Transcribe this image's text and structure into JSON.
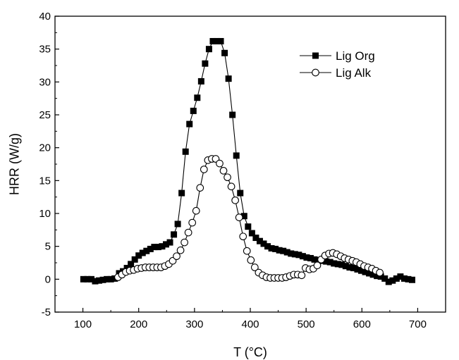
{
  "chart_data": {
    "type": "line",
    "xlabel": "T (°C)",
    "ylabel": "HRR (W/g)",
    "xlim": [
      50,
      750
    ],
    "ylim": [
      -5,
      40
    ],
    "x_ticks": [
      100,
      200,
      300,
      400,
      500,
      600,
      700
    ],
    "y_ticks": [
      -5,
      0,
      5,
      10,
      15,
      20,
      25,
      30,
      35,
      40
    ],
    "legend_position": "top-right",
    "series": [
      {
        "name": "Lig Org",
        "marker": "filled-square",
        "color": "#000000",
        "points": [
          [
            101,
            0.0
          ],
          [
            108,
            0.0
          ],
          [
            115,
            0.0
          ],
          [
            122,
            -0.3
          ],
          [
            129,
            -0.2
          ],
          [
            136,
            -0.1
          ],
          [
            143,
            0.0
          ],
          [
            150,
            0.0
          ],
          [
            157,
            0.1
          ],
          [
            165,
            0.9
          ],
          [
            172,
            1.2
          ],
          [
            179,
            1.7
          ],
          [
            186,
            2.3
          ],
          [
            193,
            3.0
          ],
          [
            200,
            3.6
          ],
          [
            207,
            4.0
          ],
          [
            214,
            4.3
          ],
          [
            221,
            4.6
          ],
          [
            228,
            4.9
          ],
          [
            235,
            4.9
          ],
          [
            242,
            5.0
          ],
          [
            249,
            5.3
          ],
          [
            256,
            5.6
          ],
          [
            263,
            6.8
          ],
          [
            270,
            8.4
          ],
          [
            277,
            13.1
          ],
          [
            284,
            19.4
          ],
          [
            291,
            23.6
          ],
          [
            298,
            25.6
          ],
          [
            305,
            27.6
          ],
          [
            312,
            30.1
          ],
          [
            319,
            32.8
          ],
          [
            326,
            35.0
          ],
          [
            333,
            36.2
          ],
          [
            340,
            36.2
          ],
          [
            347,
            36.2
          ],
          [
            354,
            34.4
          ],
          [
            361,
            30.5
          ],
          [
            368,
            25.0
          ],
          [
            375,
            18.8
          ],
          [
            382,
            13.1
          ],
          [
            389,
            9.6
          ],
          [
            396,
            8.0
          ],
          [
            403,
            7.0
          ],
          [
            410,
            6.3
          ],
          [
            417,
            5.8
          ],
          [
            424,
            5.4
          ],
          [
            431,
            5.0
          ],
          [
            438,
            4.7
          ],
          [
            445,
            4.6
          ],
          [
            452,
            4.4
          ],
          [
            459,
            4.3
          ],
          [
            466,
            4.1
          ],
          [
            473,
            3.9
          ],
          [
            480,
            3.8
          ],
          [
            487,
            3.7
          ],
          [
            494,
            3.5
          ],
          [
            501,
            3.3
          ],
          [
            508,
            3.2
          ],
          [
            515,
            3.0
          ],
          [
            522,
            2.9
          ],
          [
            529,
            2.8
          ],
          [
            536,
            2.7
          ],
          [
            543,
            2.6
          ],
          [
            550,
            2.4
          ],
          [
            557,
            2.3
          ],
          [
            564,
            2.2
          ],
          [
            571,
            2.0
          ],
          [
            578,
            1.8
          ],
          [
            585,
            1.7
          ],
          [
            592,
            1.5
          ],
          [
            599,
            1.3
          ],
          [
            606,
            1.1
          ],
          [
            613,
            0.9
          ],
          [
            620,
            0.7
          ],
          [
            627,
            0.5
          ],
          [
            634,
            0.4
          ],
          [
            641,
            0.1
          ],
          [
            648,
            -0.4
          ],
          [
            655,
            -0.2
          ],
          [
            662,
            0.1
          ],
          [
            669,
            0.4
          ],
          [
            676,
            0.1
          ],
          [
            683,
            0.0
          ],
          [
            690,
            -0.1
          ]
        ]
      },
      {
        "name": "Lig Alk",
        "marker": "open-circle",
        "color": "#000000",
        "points": [
          [
            163,
            0.3
          ],
          [
            170,
            0.7
          ],
          [
            177,
            1.1
          ],
          [
            184,
            1.3
          ],
          [
            191,
            1.4
          ],
          [
            198,
            1.6
          ],
          [
            205,
            1.7
          ],
          [
            212,
            1.8
          ],
          [
            219,
            1.8
          ],
          [
            226,
            1.8
          ],
          [
            233,
            1.8
          ],
          [
            240,
            1.8
          ],
          [
            247,
            2.0
          ],
          [
            254,
            2.3
          ],
          [
            261,
            2.8
          ],
          [
            268,
            3.5
          ],
          [
            275,
            4.4
          ],
          [
            282,
            5.6
          ],
          [
            289,
            7.1
          ],
          [
            296,
            8.6
          ],
          [
            303,
            10.4
          ],
          [
            310,
            13.9
          ],
          [
            317,
            16.7
          ],
          [
            324,
            18.1
          ],
          [
            331,
            18.3
          ],
          [
            338,
            18.3
          ],
          [
            345,
            17.6
          ],
          [
            352,
            16.5
          ],
          [
            359,
            15.5
          ],
          [
            366,
            14.1
          ],
          [
            373,
            12.0
          ],
          [
            380,
            9.4
          ],
          [
            387,
            6.5
          ],
          [
            394,
            4.3
          ],
          [
            401,
            2.9
          ],
          [
            408,
            1.8
          ],
          [
            415,
            1.0
          ],
          [
            422,
            0.6
          ],
          [
            429,
            0.3
          ],
          [
            436,
            0.2
          ],
          [
            443,
            0.2
          ],
          [
            450,
            0.2
          ],
          [
            457,
            0.2
          ],
          [
            464,
            0.3
          ],
          [
            471,
            0.5
          ],
          [
            478,
            0.7
          ],
          [
            485,
            0.7
          ],
          [
            492,
            0.6
          ],
          [
            499,
            1.7
          ],
          [
            506,
            1.5
          ],
          [
            513,
            1.6
          ],
          [
            520,
            2.1
          ],
          [
            527,
            3.0
          ],
          [
            534,
            3.6
          ],
          [
            541,
            3.9
          ],
          [
            548,
            4.0
          ],
          [
            555,
            3.8
          ],
          [
            562,
            3.5
          ],
          [
            569,
            3.2
          ],
          [
            576,
            3.0
          ],
          [
            583,
            2.8
          ],
          [
            590,
            2.6
          ],
          [
            597,
            2.3
          ],
          [
            604,
            2.0
          ],
          [
            611,
            1.8
          ],
          [
            618,
            1.6
          ],
          [
            625,
            1.3
          ],
          [
            632,
            1.0
          ]
        ]
      }
    ]
  }
}
